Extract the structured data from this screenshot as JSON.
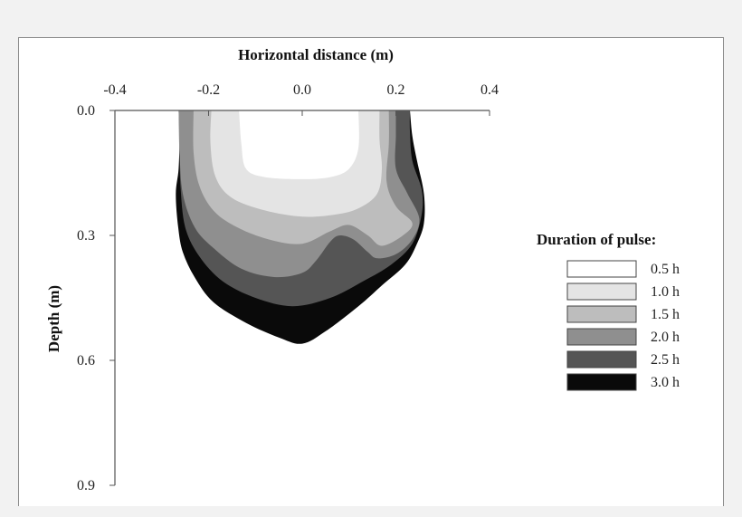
{
  "chart_data": {
    "type": "contour",
    "xlabel": "Horizontal distance (m)",
    "ylabel": "Depth (m)",
    "x_ticks": [
      -0.4,
      -0.2,
      0.0,
      0.2,
      0.4
    ],
    "x_tick_labels": [
      "-0.4",
      "-0.2",
      "0.0",
      "0.2",
      "0.4"
    ],
    "y_ticks": [
      0.0,
      0.3,
      0.6,
      0.9
    ],
    "y_tick_labels": [
      "0.0",
      "0.3",
      "0.6",
      "0.9"
    ],
    "xlim": [
      -0.4,
      0.4
    ],
    "ylim": [
      0.0,
      0.9
    ],
    "x_axis_position": "top",
    "y_axis_inverted": true,
    "grid": false,
    "legend": {
      "title": "Duration of pulse:",
      "position": "right",
      "entries": [
        {
          "label": "0.5 h",
          "color": "#ffffff"
        },
        {
          "label": "1.0 h",
          "color": "#e4e4e4"
        },
        {
          "label": "1.5 h",
          "color": "#bdbdbd"
        },
        {
          "label": "2.0 h",
          "color": "#8f8f8f"
        },
        {
          "label": "2.5 h",
          "color": "#555555"
        },
        {
          "label": "3.0 h",
          "color": "#0a0a0a"
        }
      ]
    },
    "series": [
      {
        "name": "3.0 h",
        "color": "#0a0a0a",
        "points": [
          [
            -0.264,
            0.0
          ],
          [
            -0.262,
            0.06
          ],
          [
            -0.264,
            0.14
          ],
          [
            -0.27,
            0.2
          ],
          [
            -0.265,
            0.28
          ],
          [
            -0.255,
            0.34
          ],
          [
            -0.23,
            0.4
          ],
          [
            -0.19,
            0.46
          ],
          [
            -0.12,
            0.51
          ],
          [
            -0.05,
            0.545
          ],
          [
            0.0,
            0.56
          ],
          [
            0.05,
            0.53
          ],
          [
            0.12,
            0.47
          ],
          [
            0.17,
            0.42
          ],
          [
            0.22,
            0.37
          ],
          [
            0.245,
            0.32
          ],
          [
            0.26,
            0.27
          ],
          [
            0.26,
            0.2
          ],
          [
            0.245,
            0.12
          ],
          [
            0.235,
            0.06
          ],
          [
            0.23,
            0.0
          ]
        ]
      },
      {
        "name": "2.5 h",
        "color": "#555555",
        "points": [
          [
            -0.264,
            0.0
          ],
          [
            -0.262,
            0.08
          ],
          [
            -0.26,
            0.18
          ],
          [
            -0.25,
            0.28
          ],
          [
            -0.22,
            0.35
          ],
          [
            -0.17,
            0.41
          ],
          [
            -0.1,
            0.45
          ],
          [
            -0.02,
            0.47
          ],
          [
            0.06,
            0.45
          ],
          [
            0.13,
            0.41
          ],
          [
            0.19,
            0.37
          ],
          [
            0.235,
            0.32
          ],
          [
            0.255,
            0.25
          ],
          [
            0.255,
            0.19
          ],
          [
            0.235,
            0.12
          ],
          [
            0.23,
            0.05
          ],
          [
            0.23,
            0.0
          ]
        ]
      },
      {
        "name": "2.0 h",
        "color": "#8f8f8f",
        "points": [
          [
            -0.264,
            0.0
          ],
          [
            -0.262,
            0.1
          ],
          [
            -0.255,
            0.2
          ],
          [
            -0.23,
            0.28
          ],
          [
            -0.19,
            0.33
          ],
          [
            -0.13,
            0.38
          ],
          [
            -0.06,
            0.4
          ],
          [
            0.0,
            0.39
          ],
          [
            0.03,
            0.36
          ],
          [
            0.06,
            0.315
          ],
          [
            0.08,
            0.3
          ],
          [
            0.11,
            0.31
          ],
          [
            0.14,
            0.34
          ],
          [
            0.16,
            0.355
          ],
          [
            0.2,
            0.345
          ],
          [
            0.235,
            0.31
          ],
          [
            0.25,
            0.26
          ],
          [
            0.225,
            0.2
          ],
          [
            0.2,
            0.14
          ],
          [
            0.2,
            0.06
          ],
          [
            0.2,
            0.0
          ]
        ]
      },
      {
        "name": "1.5 h",
        "color": "#bdbdbd",
        "points": [
          [
            -0.232,
            0.0
          ],
          [
            -0.232,
            0.1
          ],
          [
            -0.22,
            0.18
          ],
          [
            -0.19,
            0.24
          ],
          [
            -0.14,
            0.28
          ],
          [
            -0.07,
            0.31
          ],
          [
            0.0,
            0.32
          ],
          [
            0.06,
            0.29
          ],
          [
            0.1,
            0.275
          ],
          [
            0.14,
            0.3
          ],
          [
            0.17,
            0.325
          ],
          [
            0.215,
            0.3
          ],
          [
            0.235,
            0.27
          ],
          [
            0.2,
            0.23
          ],
          [
            0.18,
            0.17
          ],
          [
            0.185,
            0.08
          ],
          [
            0.185,
            0.0
          ]
        ]
      },
      {
        "name": "1.0 h",
        "color": "#e4e4e4",
        "points": [
          [
            -0.194,
            0.0
          ],
          [
            -0.196,
            0.08
          ],
          [
            -0.185,
            0.16
          ],
          [
            -0.15,
            0.21
          ],
          [
            -0.08,
            0.24
          ],
          [
            0.0,
            0.255
          ],
          [
            0.07,
            0.25
          ],
          [
            0.12,
            0.235
          ],
          [
            0.16,
            0.2
          ],
          [
            0.17,
            0.14
          ],
          [
            0.165,
            0.07
          ],
          [
            0.165,
            0.0
          ]
        ]
      },
      {
        "name": "0.5 h",
        "color": "#ffffff",
        "points": [
          [
            -0.135,
            0.0
          ],
          [
            -0.13,
            0.08
          ],
          [
            -0.12,
            0.14
          ],
          [
            -0.08,
            0.16
          ],
          [
            0.0,
            0.165
          ],
          [
            0.06,
            0.16
          ],
          [
            0.1,
            0.14
          ],
          [
            0.12,
            0.09
          ],
          [
            0.12,
            0.0
          ]
        ]
      }
    ]
  }
}
